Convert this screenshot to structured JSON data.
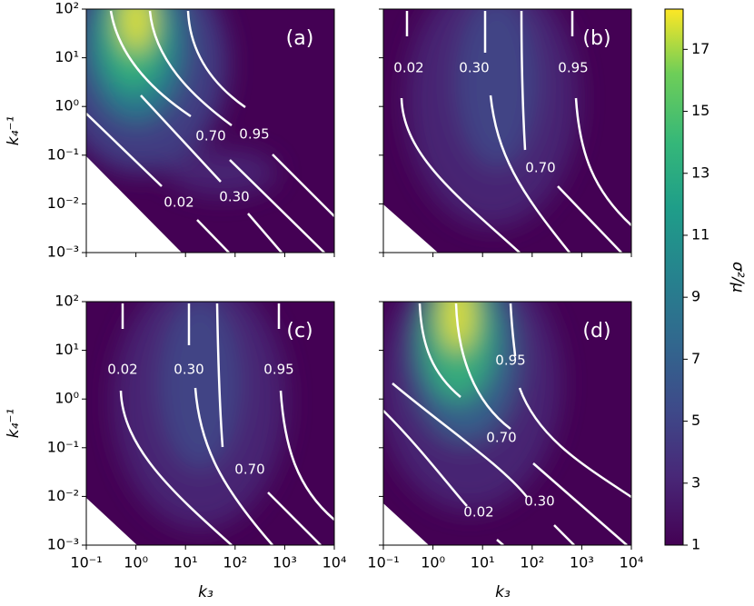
{
  "chart_data": [
    {
      "type": "contour",
      "panel_label": "(a)",
      "ylabel": "k₄⁻¹",
      "log_x": true,
      "log_y": true,
      "xlim": [
        0.1,
        10000
      ],
      "ylim": [
        0.001,
        100
      ],
      "yticks": [
        {
          "value": 0.001,
          "label": "10⁻³"
        },
        {
          "value": 0.01,
          "label": "10⁻²"
        },
        {
          "value": 0.1,
          "label": "10⁻¹"
        },
        {
          "value": 1,
          "label": "10⁰"
        },
        {
          "value": 10,
          "label": "10¹"
        },
        {
          "value": 100,
          "label": "10²"
        }
      ],
      "contour_levels": [
        0.02,
        {
          "value": 0.3,
          "label": "0.30"
        },
        {
          "value": 0.7,
          "label": "0.70"
        },
        0.95
      ],
      "contour_color": "#ffffff"
    },
    {
      "type": "contour",
      "panel_label": "(b)",
      "log_x": true,
      "log_y": true,
      "xlim": [
        0.1,
        10000
      ],
      "ylim": [
        0.001,
        100
      ],
      "contour_levels": [
        0.02,
        {
          "value": 0.3,
          "label": "0.30"
        },
        {
          "value": 0.7,
          "label": "0.70"
        },
        0.95
      ],
      "contour_color": "#ffffff"
    },
    {
      "type": "contour",
      "panel_label": "(c)",
      "xlabel": "k₃",
      "ylabel": "k₄⁻¹",
      "log_x": true,
      "log_y": true,
      "xlim": [
        0.1,
        10000
      ],
      "ylim": [
        0.001,
        100
      ],
      "xticks": [
        {
          "value": 0.1,
          "label": "10⁻¹"
        },
        {
          "value": 1,
          "label": "10⁰"
        },
        {
          "value": 10,
          "label": "10¹"
        },
        {
          "value": 100,
          "label": "10²"
        },
        {
          "value": 1000,
          "label": "10³"
        },
        {
          "value": 10000,
          "label": "10⁴"
        }
      ],
      "yticks": [
        {
          "value": 0.001,
          "label": "10⁻³"
        },
        {
          "value": 0.01,
          "label": "10⁻²"
        },
        {
          "value": 0.1,
          "label": "10⁻¹"
        },
        {
          "value": 1,
          "label": "10⁰"
        },
        {
          "value": 10,
          "label": "10¹"
        },
        {
          "value": 100,
          "label": "10²"
        }
      ],
      "contour_levels": [
        0.02,
        {
          "value": 0.3,
          "label": "0.30"
        },
        {
          "value": 0.7,
          "label": "0.70"
        },
        0.95
      ],
      "contour_color": "#ffffff"
    },
    {
      "type": "contour",
      "panel_label": "(d)",
      "xlabel": "k₃",
      "log_x": true,
      "log_y": true,
      "xlim": [
        0.1,
        10000
      ],
      "ylim": [
        0.001,
        100
      ],
      "xticks": [
        {
          "value": 0.1,
          "label": "10⁻¹"
        },
        {
          "value": 1,
          "label": "10⁰"
        },
        {
          "value": 10,
          "label": "10¹"
        },
        {
          "value": 100,
          "label": "10²"
        },
        {
          "value": 1000,
          "label": "10³"
        },
        {
          "value": 10000,
          "label": "10⁴"
        }
      ],
      "contour_levels": [
        0.02,
        {
          "value": 0.3,
          "label": "0.30"
        },
        {
          "value": 0.7,
          "label": "0.70"
        },
        0.95
      ],
      "contour_color": "#ffffff"
    }
  ],
  "colorbar": {
    "label": "σ²/μ",
    "lim": [
      1,
      18.3
    ],
    "ticks": [
      1,
      3,
      5,
      7,
      9,
      11,
      13,
      15,
      17
    ],
    "colormap": "viridis"
  }
}
